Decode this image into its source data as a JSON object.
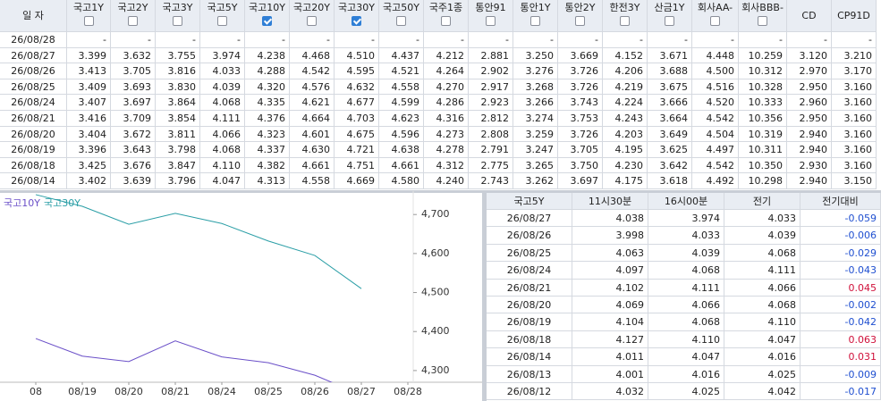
{
  "top_table": {
    "headers": [
      {
        "label": "일  자"
      },
      {
        "label": "국고1Y",
        "checked": false
      },
      {
        "label": "국고2Y",
        "checked": false
      },
      {
        "label": "국고3Y",
        "checked": false
      },
      {
        "label": "국고5Y",
        "checked": false
      },
      {
        "label": "국고10Y",
        "checked": true
      },
      {
        "label": "국고20Y",
        "checked": false
      },
      {
        "label": "국고30Y",
        "checked": true
      },
      {
        "label": "국고50Y",
        "checked": false
      },
      {
        "label": "국주1종",
        "checked": false
      },
      {
        "label": "통안91",
        "checked": false
      },
      {
        "label": "통안1Y",
        "checked": false
      },
      {
        "label": "통안2Y",
        "checked": false
      },
      {
        "label": "한전3Y",
        "checked": false
      },
      {
        "label": "산금1Y",
        "checked": false
      },
      {
        "label": "회사AA-",
        "checked": false
      },
      {
        "label": "회사BBB-",
        "checked": false
      },
      {
        "label": "CD"
      },
      {
        "label": "CP91D"
      }
    ],
    "rows": [
      [
        "26/08/28",
        "-",
        "-",
        "-",
        "-",
        "-",
        "-",
        "-",
        "-",
        "-",
        "-",
        "-",
        "-",
        "-",
        "-",
        "-",
        "-",
        "-",
        "-"
      ],
      [
        "26/08/27",
        "3.399",
        "3.632",
        "3.755",
        "3.974",
        "4.238",
        "4.468",
        "4.510",
        "4.437",
        "4.212",
        "2.881",
        "3.250",
        "3.669",
        "4.152",
        "3.671",
        "4.448",
        "10.259",
        "3.120",
        "3.210"
      ],
      [
        "26/08/26",
        "3.413",
        "3.705",
        "3.816",
        "4.033",
        "4.288",
        "4.542",
        "4.595",
        "4.521",
        "4.264",
        "2.902",
        "3.276",
        "3.726",
        "4.206",
        "3.688",
        "4.500",
        "10.312",
        "2.970",
        "3.170"
      ],
      [
        "26/08/25",
        "3.409",
        "3.693",
        "3.830",
        "4.039",
        "4.320",
        "4.576",
        "4.632",
        "4.558",
        "4.270",
        "2.917",
        "3.268",
        "3.726",
        "4.219",
        "3.675",
        "4.516",
        "10.328",
        "2.950",
        "3.160"
      ],
      [
        "26/08/24",
        "3.407",
        "3.697",
        "3.864",
        "4.068",
        "4.335",
        "4.621",
        "4.677",
        "4.599",
        "4.286",
        "2.923",
        "3.266",
        "3.743",
        "4.224",
        "3.666",
        "4.520",
        "10.333",
        "2.960",
        "3.160"
      ],
      [
        "26/08/21",
        "3.416",
        "3.709",
        "3.854",
        "4.111",
        "4.376",
        "4.664",
        "4.703",
        "4.623",
        "4.316",
        "2.812",
        "3.274",
        "3.753",
        "4.243",
        "3.664",
        "4.542",
        "10.356",
        "2.950",
        "3.160"
      ],
      [
        "26/08/20",
        "3.404",
        "3.672",
        "3.811",
        "4.066",
        "4.323",
        "4.601",
        "4.675",
        "4.596",
        "4.273",
        "2.808",
        "3.259",
        "3.726",
        "4.203",
        "3.649",
        "4.504",
        "10.319",
        "2.940",
        "3.160"
      ],
      [
        "26/08/19",
        "3.396",
        "3.643",
        "3.798",
        "4.068",
        "4.337",
        "4.630",
        "4.721",
        "4.638",
        "4.278",
        "2.791",
        "3.247",
        "3.705",
        "4.195",
        "3.625",
        "4.497",
        "10.311",
        "2.940",
        "3.160"
      ],
      [
        "26/08/18",
        "3.425",
        "3.676",
        "3.847",
        "4.110",
        "4.382",
        "4.661",
        "4.751",
        "4.661",
        "4.312",
        "2.775",
        "3.265",
        "3.750",
        "4.230",
        "3.642",
        "4.542",
        "10.350",
        "2.930",
        "3.160"
      ],
      [
        "26/08/14",
        "3.402",
        "3.639",
        "3.796",
        "4.047",
        "4.313",
        "4.558",
        "4.669",
        "4.580",
        "4.240",
        "2.743",
        "3.262",
        "3.697",
        "4.175",
        "3.618",
        "4.492",
        "10.298",
        "2.940",
        "3.150"
      ]
    ]
  },
  "chart_data": {
    "type": "line",
    "categories": [
      "08",
      "08/19",
      "08/20",
      "08/21",
      "08/24",
      "08/25",
      "08/26",
      "08/27",
      "08/28"
    ],
    "series": [
      {
        "name": "국고10Y",
        "color": "#6a4fc8",
        "values": [
          4382,
          4337,
          4323,
          4376,
          4335,
          4320,
          4288,
          4238,
          null
        ]
      },
      {
        "name": "국고30Y",
        "color": "#2a9ea6",
        "values": [
          4751,
          4721,
          4675,
          4703,
          4677,
          4632,
          4595,
          4510,
          null
        ]
      }
    ],
    "ylim": [
      4270,
      4760
    ],
    "yticks": [
      {
        "value": 4300,
        "label": "4,300"
      },
      {
        "value": 4400,
        "label": "4,400"
      },
      {
        "value": 4500,
        "label": "4,500"
      },
      {
        "value": 4600,
        "label": "4,600"
      },
      {
        "value": 4700,
        "label": "4,700"
      }
    ],
    "legend": "top-left"
  },
  "side_table": {
    "headers": [
      "국고5Y",
      "11시30분",
      "16시00분",
      "전기",
      "전기대비"
    ],
    "rows": [
      [
        "26/08/27",
        "4.038",
        "3.974",
        "4.033",
        "-0.059"
      ],
      [
        "26/08/26",
        "3.998",
        "4.033",
        "4.039",
        "-0.006"
      ],
      [
        "26/08/25",
        "4.063",
        "4.039",
        "4.068",
        "-0.029"
      ],
      [
        "26/08/24",
        "4.097",
        "4.068",
        "4.111",
        "-0.043"
      ],
      [
        "26/08/21",
        "4.102",
        "4.111",
        "4.066",
        "0.045"
      ],
      [
        "26/08/20",
        "4.069",
        "4.066",
        "4.068",
        "-0.002"
      ],
      [
        "26/08/19",
        "4.104",
        "4.068",
        "4.110",
        "-0.042"
      ],
      [
        "26/08/18",
        "4.127",
        "4.110",
        "4.047",
        "0.063"
      ],
      [
        "26/08/14",
        "4.011",
        "4.047",
        "4.016",
        "0.031"
      ],
      [
        "26/08/13",
        "4.001",
        "4.016",
        "4.025",
        "-0.009"
      ],
      [
        "26/08/12",
        "4.032",
        "4.025",
        "4.042",
        "-0.017"
      ]
    ]
  }
}
